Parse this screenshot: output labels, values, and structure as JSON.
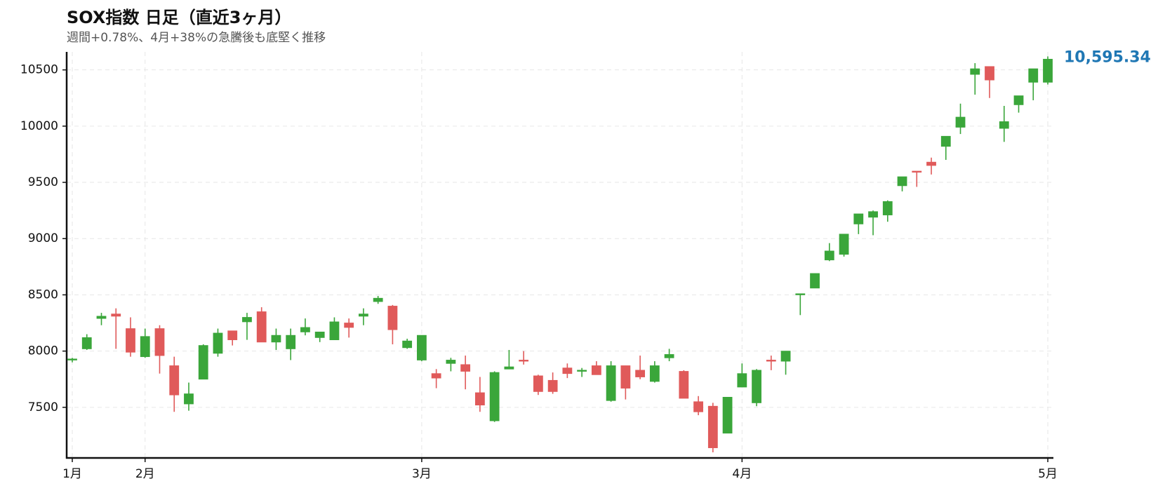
{
  "chart_data": {
    "type": "candlestick",
    "title": "SOX指数 日足（直近3ヶ月）",
    "subtitle": "週間+0.78%、4月+38%の急騰後も底堅く推移",
    "annotation": "10,595.34",
    "annotation_color": "#1f77b4",
    "up_color": "#3aa63a",
    "down_color": "#e05a5a",
    "grid": true,
    "categories": [
      "1月",
      null,
      null,
      null,
      null,
      "2月",
      null,
      null,
      null,
      null,
      null,
      null,
      null,
      null,
      null,
      null,
      null,
      null,
      null,
      null,
      null,
      null,
      null,
      null,
      "3月",
      null,
      null,
      null,
      null,
      null,
      null,
      null,
      null,
      null,
      null,
      null,
      null,
      null,
      null,
      null,
      null,
      null,
      null,
      null,
      null,
      null,
      "4月",
      null,
      null,
      null,
      null,
      null,
      null,
      null,
      null,
      null,
      null,
      null,
      null,
      null,
      null,
      null,
      null,
      null,
      null,
      null,
      null,
      "5月"
    ],
    "open": [
      7920,
      8020,
      8290,
      8330,
      8200,
      7950,
      8200,
      7870,
      7530,
      7750,
      7980,
      8180,
      8260,
      8350,
      8080,
      8020,
      8170,
      8120,
      8100,
      8250,
      8310,
      8440,
      8400,
      8030,
      7920,
      7800,
      7890,
      7880,
      7630,
      7380,
      7840,
      7920,
      7780,
      7740,
      7850,
      7820,
      7870,
      7560,
      7870,
      7830,
      7730,
      7940,
      7820,
      7550,
      7510,
      7270,
      7680,
      7540,
      7920,
      7910,
      8500,
      8560,
      8810,
      8860,
      9130,
      9190,
      9210,
      9470,
      9600,
      9680,
      9820,
      9990,
      10460,
      10530,
      9980,
      10190,
      10390,
      10390
    ],
    "high": [
      7940,
      8150,
      8340,
      8380,
      8300,
      8200,
      8230,
      7950,
      7720,
      8060,
      8200,
      8180,
      8340,
      8390,
      8200,
      8200,
      8290,
      8170,
      8300,
      8290,
      8380,
      8490,
      8410,
      8110,
      8140,
      7840,
      7940,
      7960,
      7770,
      7820,
      8010,
      8000,
      7790,
      7810,
      7890,
      7850,
      7910,
      7910,
      7870,
      7960,
      7910,
      8020,
      7830,
      7600,
      7540,
      7590,
      7890,
      7840,
      7960,
      8000,
      8510,
      8690,
      8960,
      9040,
      9220,
      9250,
      9340,
      9550,
      9600,
      9720,
      9910,
      10200,
      10560,
      10530,
      10180,
      10270,
      10510,
      10620
    ],
    "low": [
      7900,
      8010,
      8230,
      8020,
      7950,
      7940,
      7800,
      7460,
      7470,
      7750,
      7950,
      8050,
      8100,
      8080,
      8010,
      7920,
      8140,
      8080,
      8100,
      8120,
      8230,
      8420,
      8060,
      8020,
      7910,
      7670,
      7820,
      7660,
      7460,
      7370,
      7840,
      7880,
      7610,
      7620,
      7760,
      7770,
      7790,
      7550,
      7570,
      7750,
      7720,
      7910,
      7580,
      7430,
      7100,
      7270,
      7680,
      7510,
      7830,
      7790,
      8320,
      8560,
      8800,
      8840,
      9040,
      9030,
      9150,
      9420,
      9460,
      9570,
      9700,
      9930,
      10280,
      10250,
      9860,
      10120,
      10230,
      10370
    ],
    "close": [
      7930,
      8120,
      8310,
      8310,
      7990,
      8130,
      7960,
      7610,
      7620,
      8050,
      8160,
      8100,
      8300,
      8080,
      8140,
      8140,
      8210,
      8170,
      8260,
      8210,
      8330,
      8470,
      8190,
      8090,
      8140,
      7760,
      7920,
      7820,
      7520,
      7810,
      7860,
      7910,
      7640,
      7640,
      7800,
      7830,
      7790,
      7870,
      7670,
      7770,
      7870,
      7970,
      7580,
      7460,
      7140,
      7590,
      7800,
      7830,
      7910,
      8000,
      8510,
      8690,
      8890,
      9040,
      9220,
      9240,
      9330,
      9550,
      9590,
      9650,
      9910,
      10080,
      10510,
      10410,
      10040,
      10270,
      10510,
      10595.34
    ],
    "ylim": [
      7050,
      10660
    ],
    "yticks": [
      7500,
      8000,
      8500,
      9000,
      9500,
      10000,
      10500
    ]
  }
}
